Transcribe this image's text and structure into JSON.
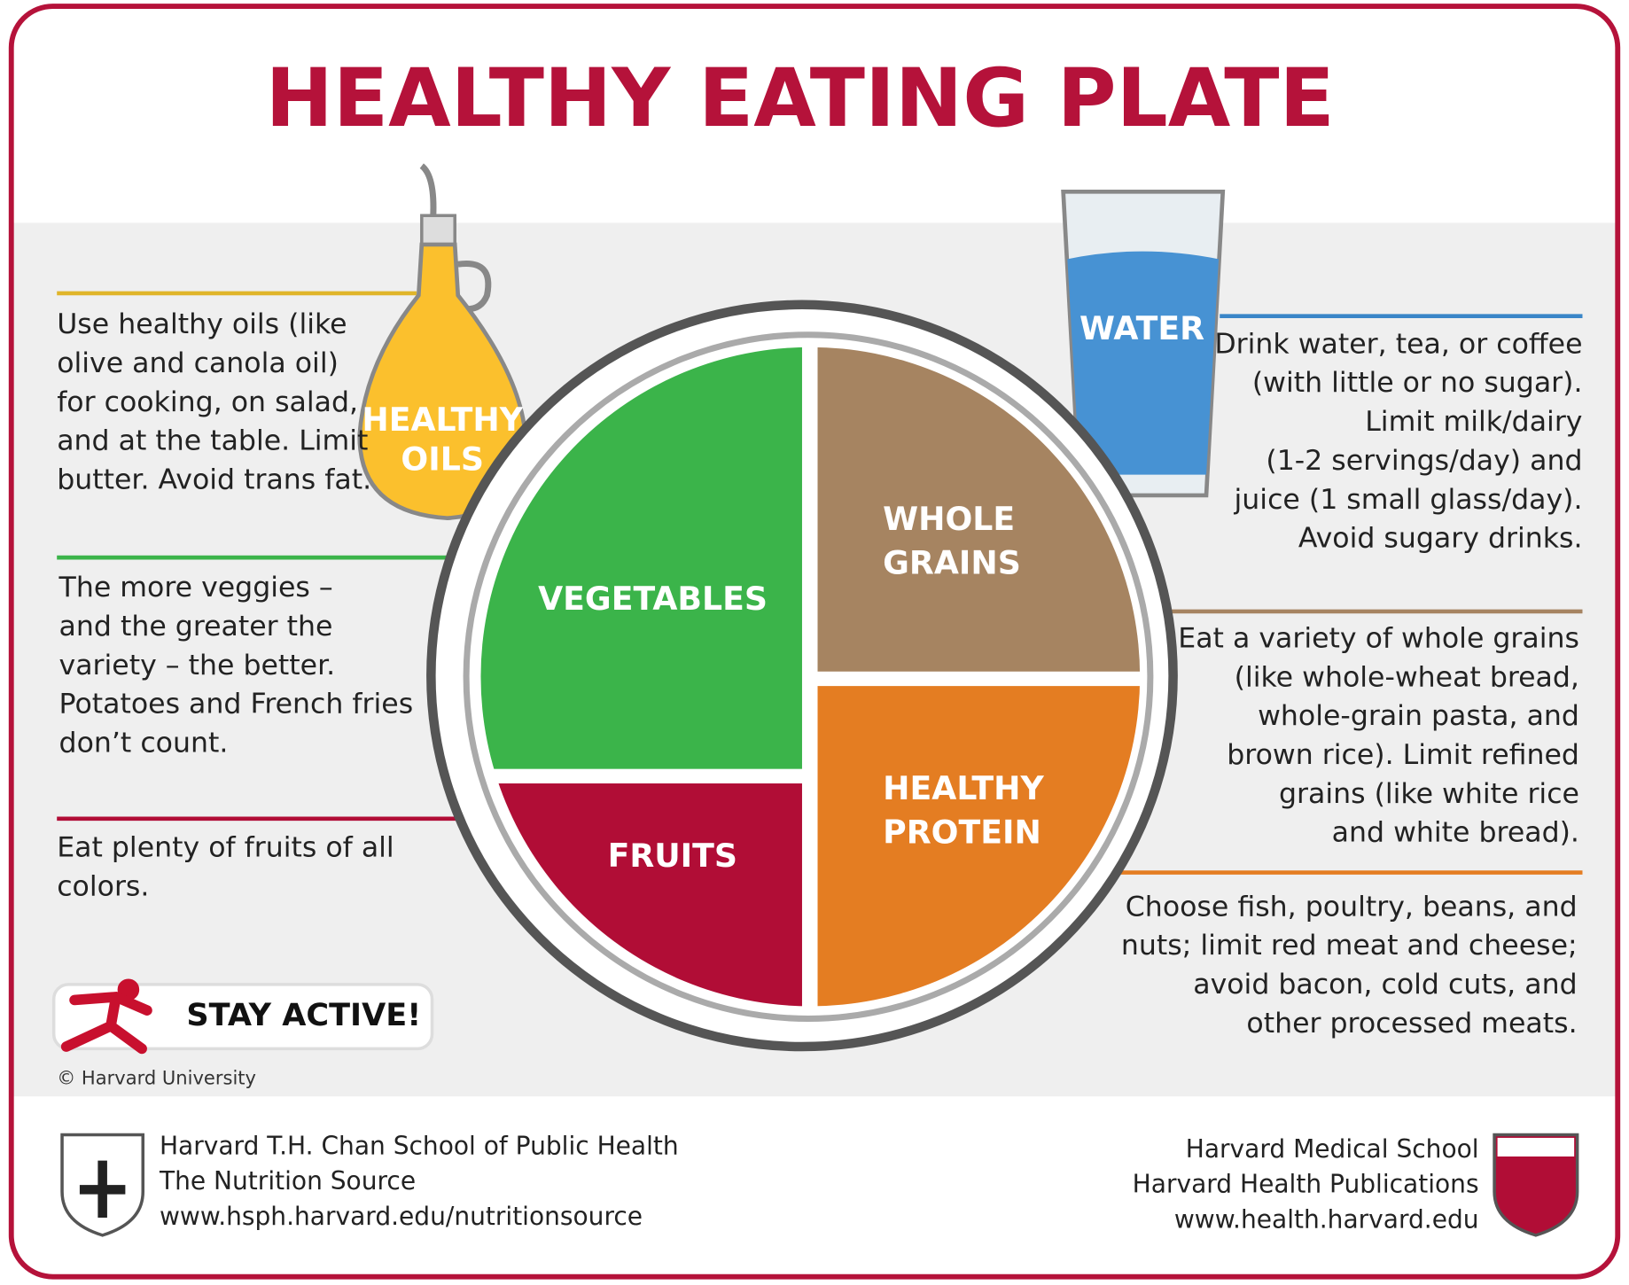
{
  "title": "HEALTHY EATING PLATE",
  "oils": {
    "label": [
      "HEALTHY",
      "OILS"
    ],
    "text": [
      "Use healthy oils (like",
      "olive and canola oil)",
      "for cooking, on salad,",
      "and at the table. Limit",
      "butter. Avoid trans fat."
    ]
  },
  "water": {
    "label": [
      "WATER"
    ],
    "text": [
      "Drink water, tea, or coffee",
      "(with little or no sugar).",
      "Limit milk/dairy",
      "(1-2 servings/day) and",
      "juice (1 small glass/day).",
      "Avoid sugary drinks."
    ]
  },
  "vegetables": {
    "label": [
      "VEGETABLES"
    ],
    "text": [
      "The more veggies –",
      "and the greater the",
      "variety – the better.",
      "Potatoes and French fries",
      "don’t count."
    ]
  },
  "whole_grains": {
    "label": [
      "WHOLE",
      "GRAINS"
    ],
    "text": [
      "Eat a variety of whole grains",
      "(like whole-wheat bread,",
      "whole-grain pasta, and",
      "brown rice). Limit refined",
      "grains (like white rice",
      "and white bread)."
    ]
  },
  "fruits": {
    "label": [
      "FRUITS"
    ],
    "text": [
      "Eat plenty of fruits of all",
      "colors."
    ]
  },
  "protein": {
    "label": [
      "HEALTHY",
      "PROTEIN"
    ],
    "text": [
      "Choose fish, poultry, beans, and",
      "nuts;  limit red meat and cheese;",
      "avoid bacon, cold cuts,  and",
      "other processed meats."
    ]
  },
  "stay_active": "STAY ACTIVE!",
  "copyright": "© Harvard University",
  "footer_left": [
    "Harvard T.H. Chan School of Public Health",
    "The Nutrition Source",
    "www.hsph.harvard.edu/nutritionsource"
  ],
  "footer_right": [
    "Harvard Medical School",
    "Harvard Health Publications",
    "www.health.harvard.edu"
  ]
}
